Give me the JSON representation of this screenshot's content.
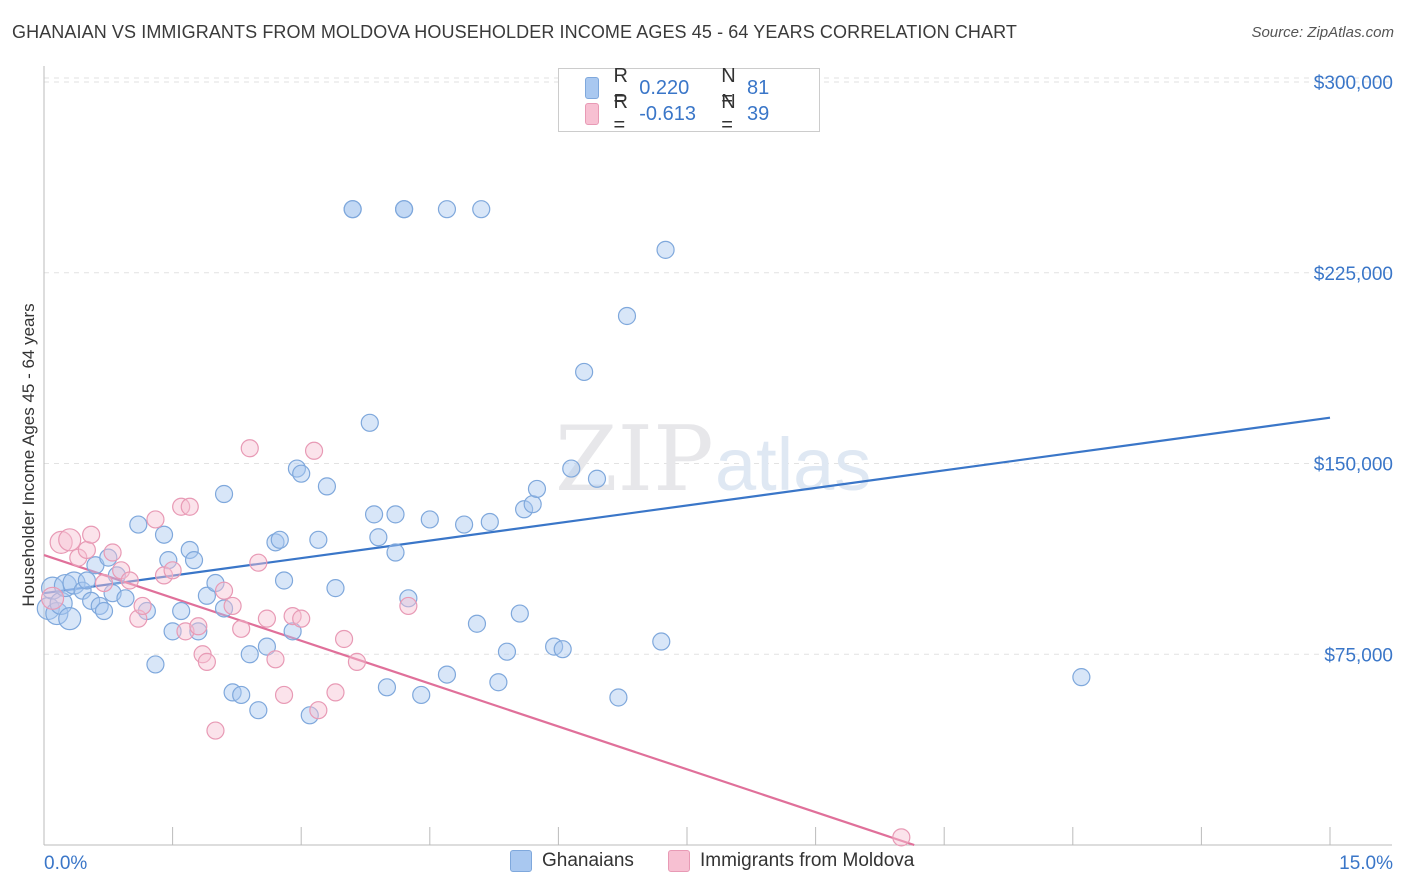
{
  "title": "GHANAIAN VS IMMIGRANTS FROM MOLDOVA HOUSEHOLDER INCOME AGES 45 - 64 YEARS CORRELATION CHART",
  "source": "Source: ZipAtlas.com",
  "watermark": {
    "zip": "ZIP",
    "atlas": "atlas"
  },
  "legend": {
    "rows": [
      {
        "r_label": "R =",
        "r_value": "0.220",
        "n_label": "N =",
        "n_value": "81",
        "color": "#a9c8f0",
        "border": "#7fa8dc"
      },
      {
        "r_label": "R =",
        "r_value": "-0.613",
        "n_label": "N =",
        "n_value": "39",
        "color": "#f7c0d2",
        "border": "#e89ab5"
      }
    ]
  },
  "bottom_legend": [
    {
      "label": "Ghanaians",
      "color": "#a9c8f0",
      "border": "#7fa8dc"
    },
    {
      "label": "Immigrants from Moldova",
      "color": "#f7c0d2",
      "border": "#e89ab5"
    }
  ],
  "chart_data": {
    "type": "scatter",
    "title": "GHANAIAN VS IMMIGRANTS FROM MOLDOVA HOUSEHOLDER INCOME AGES 45 - 64 YEARS CORRELATION CHART",
    "xlabel": "",
    "ylabel": "Householder Income Ages 45 - 64 years",
    "xlim": [
      0,
      15
    ],
    "ylim": [
      0,
      300000
    ],
    "x_tick_labels": [
      "0.0%",
      "15.0%"
    ],
    "y_ticks": [
      75000,
      150000,
      225000,
      300000
    ],
    "y_tick_labels": [
      "$75,000",
      "$150,000",
      "$225,000",
      "$300,000"
    ],
    "grid": true,
    "series": [
      {
        "name": "Ghanaians",
        "color": "#7fa8dc",
        "fill": "#a9c8f0",
        "trend": {
          "x": [
            0,
            15
          ],
          "y": [
            99000,
            168000
          ],
          "color": "#3a76c8"
        },
        "points": [
          [
            0.05,
            93000
          ],
          [
            0.1,
            101000
          ],
          [
            0.15,
            91000
          ],
          [
            0.2,
            95000
          ],
          [
            0.25,
            102000
          ],
          [
            0.3,
            89000
          ],
          [
            0.35,
            103000
          ],
          [
            0.45,
            100000
          ],
          [
            0.5,
            104000
          ],
          [
            0.55,
            96000
          ],
          [
            0.6,
            110000
          ],
          [
            0.65,
            94000
          ],
          [
            0.7,
            92000
          ],
          [
            0.75,
            113000
          ],
          [
            0.8,
            99000
          ],
          [
            0.85,
            106000
          ],
          [
            0.95,
            97000
          ],
          [
            1.1,
            126000
          ],
          [
            1.2,
            92000
          ],
          [
            1.3,
            71000
          ],
          [
            1.4,
            122000
          ],
          [
            1.45,
            112000
          ],
          [
            1.5,
            84000
          ],
          [
            1.6,
            92000
          ],
          [
            1.7,
            116000
          ],
          [
            1.75,
            112000
          ],
          [
            1.8,
            84000
          ],
          [
            1.9,
            98000
          ],
          [
            2.0,
            103000
          ],
          [
            2.1,
            93000
          ],
          [
            2.2,
            60000
          ],
          [
            2.3,
            59000
          ],
          [
            2.1,
            138000
          ],
          [
            2.4,
            75000
          ],
          [
            2.5,
            53000
          ],
          [
            2.6,
            78000
          ],
          [
            2.7,
            119000
          ],
          [
            2.75,
            120000
          ],
          [
            2.8,
            104000
          ],
          [
            2.9,
            84000
          ],
          [
            2.95,
            148000
          ],
          [
            3.0,
            146000
          ],
          [
            3.1,
            51000
          ],
          [
            3.2,
            120000
          ],
          [
            3.3,
            141000
          ],
          [
            3.4,
            101000
          ],
          [
            3.6,
            250000
          ],
          [
            3.8,
            166000
          ],
          [
            3.85,
            130000
          ],
          [
            3.9,
            121000
          ],
          [
            4.0,
            62000
          ],
          [
            4.1,
            115000
          ],
          [
            4.25,
            97000
          ],
          [
            4.2,
            250000
          ],
          [
            4.4,
            59000
          ],
          [
            4.1,
            130000
          ],
          [
            4.5,
            128000
          ],
          [
            4.2,
            250000
          ],
          [
            4.7,
            67000
          ],
          [
            4.9,
            126000
          ],
          [
            5.05,
            87000
          ],
          [
            5.2,
            127000
          ],
          [
            5.3,
            64000
          ],
          [
            5.4,
            76000
          ],
          [
            5.55,
            91000
          ],
          [
            5.6,
            132000
          ],
          [
            5.7,
            134000
          ],
          [
            5.75,
            140000
          ],
          [
            5.95,
            78000
          ],
          [
            6.05,
            77000
          ],
          [
            6.15,
            148000
          ],
          [
            6.3,
            186000
          ],
          [
            6.45,
            144000
          ],
          [
            6.7,
            58000
          ],
          [
            6.8,
            208000
          ],
          [
            7.25,
            234000
          ],
          [
            7.2,
            80000
          ],
          [
            4.7,
            250000
          ],
          [
            5.1,
            250000
          ],
          [
            3.6,
            250000
          ],
          [
            12.1,
            66000
          ]
        ]
      },
      {
        "name": "Immigrants from Moldova",
        "color": "#e89ab5",
        "fill": "#f7c0d2",
        "trend": {
          "x": [
            0,
            10.15
          ],
          "y": [
            114000,
            0
          ],
          "color": "#e0709a"
        },
        "points": [
          [
            0.1,
            97000
          ],
          [
            0.2,
            119000
          ],
          [
            0.3,
            120000
          ],
          [
            0.4,
            113000
          ],
          [
            0.5,
            116000
          ],
          [
            0.55,
            122000
          ],
          [
            0.7,
            103000
          ],
          [
            0.8,
            115000
          ],
          [
            0.9,
            108000
          ],
          [
            1.0,
            104000
          ],
          [
            1.1,
            89000
          ],
          [
            1.15,
            94000
          ],
          [
            1.3,
            128000
          ],
          [
            1.4,
            106000
          ],
          [
            1.5,
            108000
          ],
          [
            1.6,
            133000
          ],
          [
            1.65,
            84000
          ],
          [
            1.7,
            133000
          ],
          [
            1.8,
            86000
          ],
          [
            1.85,
            75000
          ],
          [
            1.9,
            72000
          ],
          [
            2.0,
            45000
          ],
          [
            2.1,
            100000
          ],
          [
            2.2,
            94000
          ],
          [
            2.3,
            85000
          ],
          [
            2.4,
            156000
          ],
          [
            2.5,
            111000
          ],
          [
            2.6,
            89000
          ],
          [
            2.7,
            73000
          ],
          [
            2.8,
            59000
          ],
          [
            2.9,
            90000
          ],
          [
            3.0,
            89000
          ],
          [
            3.15,
            155000
          ],
          [
            3.2,
            53000
          ],
          [
            3.4,
            60000
          ],
          [
            3.5,
            81000
          ],
          [
            3.65,
            72000
          ],
          [
            4.25,
            94000
          ],
          [
            10.0,
            3000
          ]
        ]
      }
    ]
  }
}
